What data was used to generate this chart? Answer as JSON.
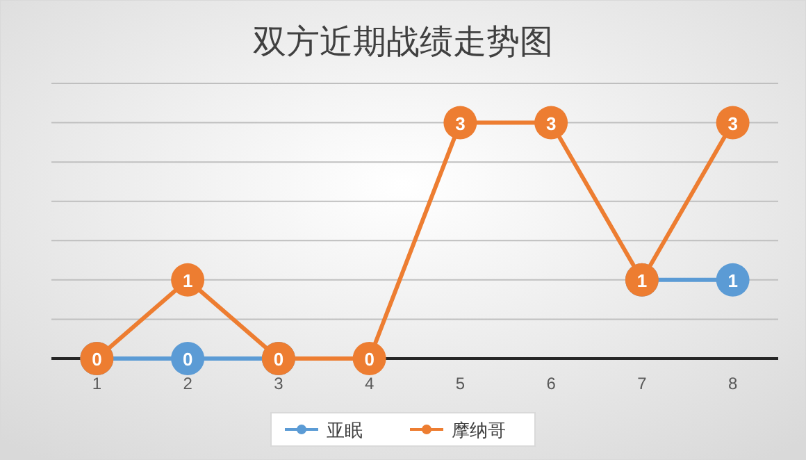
{
  "chart_data": {
    "type": "line",
    "title": "双方近期战绩走势图",
    "categories": [
      "1",
      "2",
      "3",
      "4",
      "5",
      "6",
      "7",
      "8"
    ],
    "series": [
      {
        "name": "亚眠",
        "color": "#5b9bd5",
        "values": [
          0,
          0,
          0,
          null,
          null,
          null,
          1,
          1
        ],
        "value_labels": [
          null,
          "0",
          null,
          null,
          null,
          null,
          null,
          "1"
        ]
      },
      {
        "name": "摩纳哥",
        "color": "#ed7d31",
        "values": [
          0,
          1,
          0,
          0,
          3,
          3,
          1,
          3
        ],
        "value_labels": [
          "0",
          "1",
          "0",
          "0",
          "3",
          "3",
          "1",
          "3"
        ]
      }
    ],
    "ylim": [
      0,
      3.5
    ],
    "yticks": [
      {
        "value": 0,
        "label": null
      },
      {
        "value": 0.5,
        "label": null
      },
      {
        "value": 1,
        "label": null
      },
      {
        "value": 1.5,
        "label": null
      },
      {
        "value": 2,
        "label": null
      },
      {
        "value": 2.5,
        "label": null
      },
      {
        "value": 3,
        "label": null
      },
      {
        "value": 3.5,
        "label": null
      }
    ],
    "tick_labels": "x",
    "grid": "y",
    "legend": "bottom",
    "marker": "circle",
    "line_style": "solid"
  }
}
